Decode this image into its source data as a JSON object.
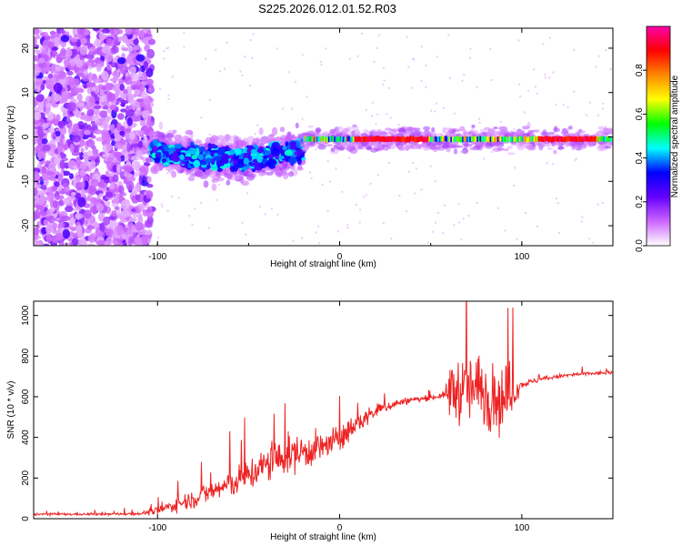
{
  "title": "S225.2026.012.01.52.R03",
  "chart_data": [
    {
      "type": "heatmap",
      "name": "spectrogram",
      "xlabel": "Height of straight line (km)",
      "ylabel": "Frequency (Hz)",
      "xlim": [
        -168,
        150
      ],
      "ylim": [
        -24.5,
        24.5
      ],
      "xticks": [
        -100,
        0,
        100
      ],
      "yticks": [
        -20,
        -10,
        0,
        10,
        20
      ],
      "colorbar": {
        "label": "Normalized spectral amplitude",
        "range": [
          0,
          1
        ],
        "ticks": [
          "0.0",
          "0.2",
          "0.4",
          "0.6",
          "0.8"
        ],
        "tick_values": [
          0.0,
          0.2,
          0.4,
          0.6,
          0.8
        ],
        "stops": [
          "#ffffff",
          "#cc66ff",
          "#6600ff",
          "#0000ff",
          "#00ffff",
          "#00ff00",
          "#ffff00",
          "#ff8800",
          "#ff0000",
          "#ff00aa"
        ]
      },
      "regions": [
        {
          "desc": "noise",
          "x": [
            -168,
            -103
          ],
          "freq": [
            -24.5,
            24.5
          ],
          "amplitude": 0.15
        },
        {
          "desc": "onset",
          "x": [
            -103,
            -20
          ],
          "freq_center": -4,
          "freq_width": 8,
          "amplitude": 0.35
        },
        {
          "desc": "tone",
          "x": [
            -20,
            150
          ],
          "freq_center": -0.5,
          "freq_width": 2,
          "amplitude": 0.85
        }
      ]
    },
    {
      "type": "line",
      "name": "snr",
      "xlabel": "Height of straight line (km)",
      "ylabel": "SNR (10 * v/v)",
      "xlim": [
        -168,
        150
      ],
      "ylim": [
        0,
        1070
      ],
      "xticks": [
        -100,
        0,
        100
      ],
      "yticks": [
        0,
        200,
        400,
        600,
        800,
        1000
      ],
      "color": "#ee2222",
      "series": [
        {
          "name": "SNR",
          "x": [
            -168,
            -130,
            -110,
            -100,
            -90,
            -80,
            -70,
            -60,
            -50,
            -40,
            -30,
            -20,
            -10,
            0,
            10,
            20,
            30,
            40,
            50,
            58,
            60,
            70,
            80,
            90,
            100,
            110,
            120,
            130,
            140,
            150
          ],
          "mean": [
            22,
            22,
            25,
            38,
            70,
            100,
            135,
            170,
            215,
            265,
            310,
            330,
            350,
            390,
            470,
            530,
            565,
            585,
            595,
            610,
            630,
            640,
            620,
            580,
            660,
            685,
            700,
            710,
            715,
            720
          ],
          "spread": [
            10,
            10,
            12,
            35,
            60,
            80,
            100,
            120,
            140,
            160,
            170,
            150,
            140,
            110,
            90,
            60,
            40,
            25,
            20,
            30,
            250,
            300,
            300,
            300,
            30,
            20,
            18,
            18,
            18,
            18
          ]
        }
      ]
    }
  ]
}
